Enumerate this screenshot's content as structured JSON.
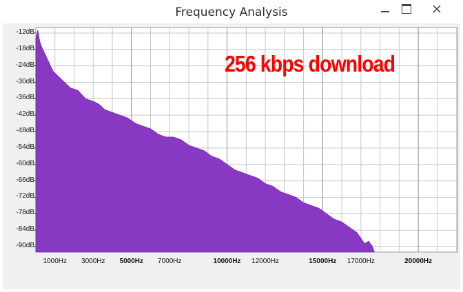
{
  "window": {
    "title": "Frequency Analysis",
    "controls": [
      "minimize",
      "maximize",
      "close"
    ]
  },
  "annotation": "256 kbps download",
  "colors": {
    "spectrum_fill": "#8839c4",
    "annotation": "#ff0000",
    "plot_bg": "#ffffff",
    "grid": "#c8c8c8"
  },
  "chart_data": {
    "type": "area",
    "title": "",
    "xlabel": "",
    "ylabel": "",
    "x_unit": "Hz",
    "y_unit": "dB",
    "grid": true,
    "xlim": [
      0,
      22050
    ],
    "ylim": [
      -92,
      -10
    ],
    "y_ticks": [
      "-12dB",
      "-18dB",
      "-24dB",
      "-30dB",
      "-36dB",
      "-42dB",
      "-48dB",
      "-54dB",
      "-60dB",
      "-66dB",
      "-72dB",
      "-78dB",
      "-84dB",
      "-90dB"
    ],
    "y_tick_values": [
      -12,
      -18,
      -24,
      -30,
      -36,
      -42,
      -48,
      -54,
      -60,
      -66,
      -72,
      -78,
      -84,
      -90
    ],
    "x_ticks": [
      {
        "label": "1000Hz",
        "value": 1000,
        "bold": false
      },
      {
        "label": "3000Hz",
        "value": 3000,
        "bold": false
      },
      {
        "label": "5000Hz",
        "value": 5000,
        "bold": true
      },
      {
        "label": "7000Hz",
        "value": 7000,
        "bold": false
      },
      {
        "label": "10000Hz",
        "value": 10000,
        "bold": true
      },
      {
        "label": "12000Hz",
        "value": 12000,
        "bold": false
      },
      {
        "label": "15000Hz",
        "value": 15000,
        "bold": true
      },
      {
        "label": "17000Hz",
        "value": 17000,
        "bold": false
      },
      {
        "label": "20000Hz",
        "value": 20000,
        "bold": true
      }
    ],
    "series": [
      {
        "x": [
          0,
          100,
          200,
          300,
          500,
          700,
          900,
          1200,
          1500,
          1800,
          2200,
          2600,
          3000,
          3300,
          3600,
          4000,
          4400,
          4800,
          5200,
          5600,
          6000,
          6400,
          6800,
          7200,
          7600,
          8000,
          8400,
          8800,
          9200,
          9600,
          10000,
          10400,
          10800,
          11200,
          11600,
          12000,
          12400,
          12800,
          13200,
          13600,
          14000,
          14400,
          14800,
          15200,
          15600,
          16000,
          16400,
          16800,
          17000,
          17200,
          17400,
          17600,
          17700
        ],
        "y": [
          -14,
          -11,
          -15,
          -17,
          -20,
          -23,
          -26,
          -28,
          -30,
          -32,
          -33,
          -36,
          -37,
          -38,
          -40,
          -41,
          -42,
          -43,
          -45,
          -46,
          -47,
          -49,
          -50,
          -50,
          -51,
          -53,
          -54,
          -55,
          -57,
          -58,
          -60,
          -62,
          -63,
          -64,
          -65,
          -67,
          -68,
          -70,
          -71,
          -72,
          -74,
          -75,
          -76,
          -78,
          -80,
          -81,
          -83,
          -85,
          -87,
          -89,
          -88,
          -90,
          -92
        ]
      }
    ]
  }
}
